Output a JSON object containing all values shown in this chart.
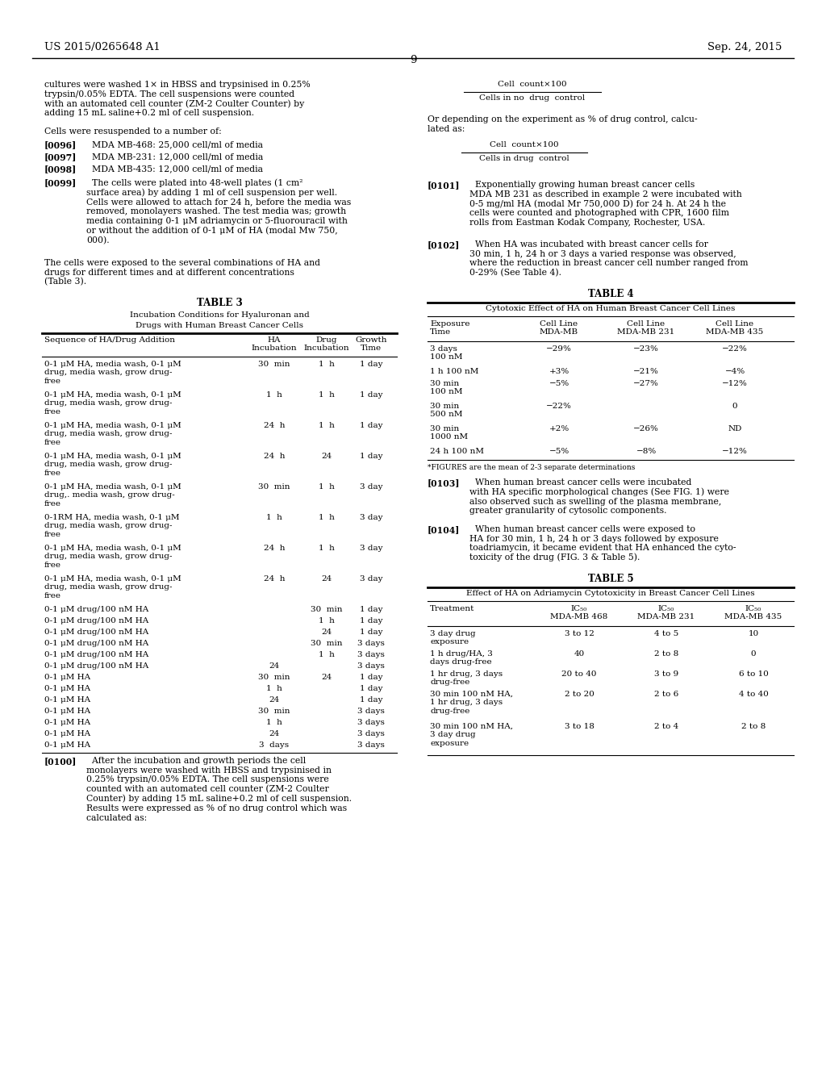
{
  "header_left": "US 2015/0265648 A1",
  "header_right": "Sep. 24, 2015",
  "page_number": "9",
  "background_color": "#ffffff",
  "left_para1": "cultures were washed 1× in HBSS and trypsinised in 0.25%\ntrypsin/0.05% EDTA. The cell suspensions were counted\nwith an automated cell counter (ZM-2 Coulter Counter) by\nadding 15 mL saline+0.2 ml of cell suspension.",
  "left_para2": "Cells were resuspended to a number of:",
  "left_para3a": "[0096]   MDA MB-468: 25,000 cell/ml of media",
  "left_para3b": "[0097]   MDA MB-231: 12,000 cell/ml of media",
  "left_para3c": "[0098]   MDA MB-435: 12,000 cell/ml of media",
  "left_para4": "[0099]   The cells were plated into 48-well plates (1 cm²\nsurface area) by adding 1 ml of cell suspension per well.\nCells were allowed to attach for 24 h, before the media was\nremoved, monolayers washed. The test media was; growth\nmedia containing 0-1 μM adriamycin or 5-fluorouracil with\nor without the addition of 0-1 μM of HA (modal Mw 750,\n000).",
  "left_para5": "The cells were exposed to the several combinations of HA and\ndrugs for different times and at different concentrations\n(Table 3).",
  "frac1_num": "Cell  count×100",
  "frac1_den": "Cells in no  drug  control",
  "frac2_num": "Cell  count×100",
  "frac2_den": "Cells in drug  control",
  "right_or_text": "Or depending on the experiment as % of drug control, calcu-\nlated as:",
  "right_para101": "[0101]   Exponentially growing human breast cancer cells\nMDA MB 231 as described in example 2 were incubated with\n0-5 mg/ml HA (modal Mr 750,000 D) for 24 h. At 24 h the\ncells were counted and photographed with CPR, 1600 film\nrolls from Eastman Kodak Company, Rochester, USA.",
  "right_para102": "[0102]   When HA was incubated with breast cancer cells for\n30 min, 1 h, 24 h or 3 days a varied response was observed,\nwhere the reduction in breast cancer cell number ranged from\n0-29% (See Table 4).",
  "right_para103": "[0103]   When human breast cancer cells were incubated\nwith HA specific morphological changes (See FIG. 1) were\nalso observed such as swelling of the plasma membrane,\ngreater granularity of cytosolic components.",
  "right_para104": "[0104]   When human breast cancer cells were exposed to\nHA for 30 min, 1 h, 24 h or 3 days followed by exposure\ntoadriamycin, it became evident that HA enhanced the cyto-\ntoxicity of the drug (FIG. 3 & Table 5).",
  "para0100": "[0100]   After the incubation and growth periods the cell\nmonolayers were washed with HBSS and trypsinised in\n0.25% trypsin/0.05% EDTA. The cell suspensions were\ncounted with an automated cell counter (ZM-2 Coulter\nCounter) by adding 15 mL saline+0.2 ml of cell suspension.\nResults were expressed as % of no drug control which was\ncalculated as:",
  "table3_title": "TABLE 3",
  "table3_sub1": "Incubation Conditions for Hyaluronan and",
  "table3_sub2": "Drugs with Human Breast Cancer Cells",
  "table3_col_headers": [
    "Sequence of HA/Drug Addition",
    "HA\nIncubation",
    "Drug\nIncubation",
    "Growth\nTime"
  ],
  "table3_rows": [
    [
      "0-1 μM HA, media wash, 0-1 μM\ndrug, media wash, grow drug-\nfree",
      "30  min",
      "1  h",
      "1 day"
    ],
    [
      "0-1 μM HA, media wash, 0-1 μM\ndrug, media wash, grow drug-\nfree",
      "1  h",
      "1  h",
      "1 day"
    ],
    [
      "0-1 μM HA, media wash, 0-1 μM\ndrug, media wash, grow drug-\nfree",
      "24  h",
      "1  h",
      "1 day"
    ],
    [
      "0-1 μM HA, media wash, 0-1 μM\ndrug, media wash, grow drug-\nfree",
      "24  h",
      "24",
      "1 day"
    ],
    [
      "0-1 μM HA, media wash, 0-1 μM\ndrug,. media wash, grow drug-\nfree",
      "30  min",
      "1  h",
      "3 day"
    ],
    [
      "0-1RM HA, media wash, 0-1 μM\ndrug, media wash, grow drug-\nfree",
      "1  h",
      "1  h",
      "3 day"
    ],
    [
      "0-1 μM HA, media wash, 0-1 μM\ndrug, media wash, grow drug-\nfree",
      "24  h",
      "1  h",
      "3 day"
    ],
    [
      "0-1 μM HA, media wash, 0-1 μM\ndrug, media wash, grow drug-\nfree",
      "24  h",
      "24",
      "3 day"
    ],
    [
      "0-1 μM drug/100 nM HA",
      "",
      "30  min",
      "1 day"
    ],
    [
      "0-1 μM drug/100 nM HA",
      "",
      "1  h",
      "1 day"
    ],
    [
      "0-1 μM drug/100 nM HA",
      "",
      "24",
      "1 day"
    ],
    [
      "0-1 μM drug/100 nM HA",
      "",
      "30  min",
      "3 days"
    ],
    [
      "0-1 μM drug/100 nM HA",
      "",
      "1  h",
      "3 days"
    ],
    [
      "0-1 μM drug/100 nM HA",
      "24",
      "",
      "3 days"
    ],
    [
      "0-1 μM HA",
      "30  min",
      "24",
      "1 day"
    ],
    [
      "0-1 μM HA",
      "1  h",
      "",
      "1 day"
    ],
    [
      "0-1 μM HA",
      "24",
      "",
      "1 day"
    ],
    [
      "0-1 μM HA",
      "30  min",
      "",
      "3 days"
    ],
    [
      "0-1 μM HA",
      "1  h",
      "",
      "3 days"
    ],
    [
      "0-1 μM HA",
      "24",
      "",
      "3 days"
    ],
    [
      "0-1 μM HA",
      "3  days",
      "",
      "3 days"
    ]
  ],
  "table4_title": "TABLE 4",
  "table4_sub": "Cytotoxic Effect of HA on Human Breast Cancer Cell Lines",
  "table4_col_headers": [
    "Exposure\nTime",
    "Cell Line\nMDA-MB",
    "Cell Line\nMDA-MB 231",
    "Cell Line\nMDA-MB 435"
  ],
  "table4_rows": [
    [
      "3 days\n100 nM",
      "−29%",
      "−23%",
      "−22%"
    ],
    [
      "1 h 100 nM",
      "+3%",
      "−21%",
      "−4%"
    ],
    [
      "30 min\n100 nM",
      "−5%",
      "−27%",
      "−12%"
    ],
    [
      "30 min\n500 nM",
      "−22%",
      "",
      "0"
    ],
    [
      "30 min\n1000 nM",
      "+2%",
      "−26%",
      "ND"
    ],
    [
      "24 h 100 nM",
      "−5%",
      "−8%",
      "−12%"
    ]
  ],
  "table4_footnote": "*FIGURES are the mean of 2-3 separate determinations",
  "table5_title": "TABLE 5",
  "table5_sub": "Effect of HA on Adriamycin Cytotoxicity in Breast Cancer Cell Lines",
  "table5_col_headers": [
    "Treatment",
    "IC₅₀\nMDA-MB 468",
    "IC₅₀\nMDA-MB 231",
    "IC₅₀\nMDA-MB 435"
  ],
  "table5_rows": [
    [
      "3 day drug\nexposure",
      "3 to 12",
      "4 to 5",
      "10"
    ],
    [
      "1 h drug/HA, 3\ndays drug-free",
      "40",
      "2 to 8",
      "0"
    ],
    [
      "1 hr drug, 3 days\ndrug-free",
      "20 to 40",
      "3 to 9",
      "6 to 10"
    ],
    [
      "30 min 100 nM HA,\n1 hr drug, 3 days\ndrug-free",
      "2 to 20",
      "2 to 6",
      "4 to 40"
    ],
    [
      "30 min 100 nM HA,\n3 day drug\nexposure",
      "3 to 18",
      "2 to 4",
      "2 to 8"
    ]
  ]
}
